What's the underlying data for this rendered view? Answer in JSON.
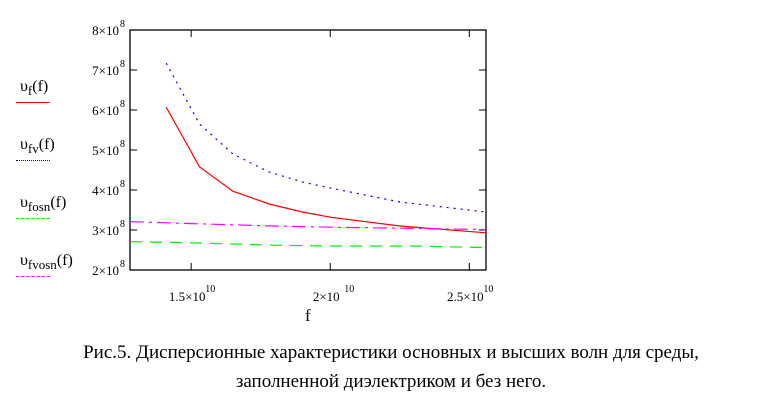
{
  "chart_data": {
    "type": "line",
    "title": "",
    "xlabel": "f",
    "ylabel": "",
    "xlim": [
      12800000000.0,
      25600000000.0
    ],
    "ylim": [
      200000000.0,
      800000000.0
    ],
    "grid": false,
    "legend_position": "left",
    "x_ticks": [
      {
        "value": 15000000000.0,
        "label": "1.5×10",
        "exp": "10"
      },
      {
        "value": 20000000000.0,
        "label": "2×10",
        "exp": "10"
      },
      {
        "value": 25000000000.0,
        "label": "2.5×10",
        "exp": "10"
      }
    ],
    "y_ticks": [
      {
        "value": 200000000.0,
        "label": "2×10",
        "exp": "8"
      },
      {
        "value": 300000000.0,
        "label": "3×10",
        "exp": "8"
      },
      {
        "value": 400000000.0,
        "label": "4×10",
        "exp": "8"
      },
      {
        "value": 500000000.0,
        "label": "5×10",
        "exp": "8"
      },
      {
        "value": 600000000.0,
        "label": "6×10",
        "exp": "8"
      },
      {
        "value": 700000000.0,
        "label": "7×10",
        "exp": "8"
      },
      {
        "value": 800000000.0,
        "label": "8×10",
        "exp": "8"
      }
    ],
    "series": [
      {
        "name": "υf(f)",
        "base": "υ",
        "sub": "f",
        "arg": "(f)",
        "color": "#ff0000",
        "dash": "",
        "x": [
          14100000000.0,
          15300000000.0,
          16500000000.0,
          17800000000.0,
          19000000000.0,
          20000000000.0,
          22500000000.0,
          25600000000.0
        ],
        "y": [
          607000000.0,
          458000000.0,
          397000000.0,
          365000000.0,
          345000000.0,
          332000000.0,
          310000000.0,
          293000000.0
        ]
      },
      {
        "name": "υfv(f)",
        "base": "υ",
        "sub": "fv",
        "arg": "(f)",
        "color": "#0000ff",
        "dash": "2,5",
        "x": [
          14100000000.0,
          15300000000.0,
          16500000000.0,
          17800000000.0,
          19000000000.0,
          20000000000.0,
          22500000000.0,
          25600000000.0
        ],
        "y": [
          717000000.0,
          565000000.0,
          490000000.0,
          445000000.0,
          420000000.0,
          405000000.0,
          370000000.0,
          345000000.0
        ]
      },
      {
        "name": "υfosn(f)",
        "base": "υ",
        "sub": "fosn",
        "arg": "(f)",
        "color": "#00ee00",
        "dash": "12,8",
        "x": [
          12800000000.0,
          15000000000.0,
          18000000000.0,
          20000000000.0,
          23000000000.0,
          25600000000.0
        ],
        "y": [
          271000000.0,
          268000000.0,
          262000000.0,
          260000000.0,
          260000000.0,
          256000000.0
        ]
      },
      {
        "name": "υfvosn(f)",
        "base": "υ",
        "sub": "fvosn",
        "arg": "(f)",
        "color": "#ff00ff",
        "dash": "14,5,3,5",
        "x": [
          12800000000.0,
          15000000000.0,
          18000000000.0,
          20000000000.0,
          23000000000.0,
          25600000000.0
        ],
        "y": [
          321000000.0,
          316000000.0,
          310000000.0,
          307000000.0,
          304000000.0,
          301000000.0
        ]
      }
    ]
  },
  "caption": {
    "line1": "Рис.5. Дисперсионные характеристики основных и высших волн для среды,",
    "line2": "заполненной диэлектриком и без него."
  }
}
